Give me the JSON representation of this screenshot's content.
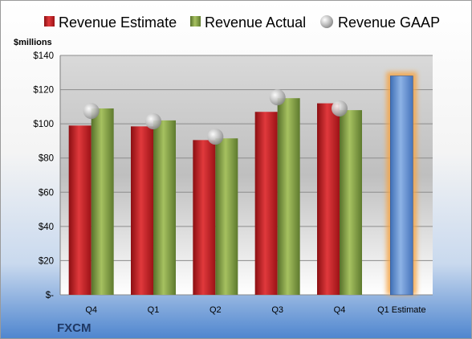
{
  "chart_data": {
    "type": "bar",
    "ticker": "FXCM",
    "y_unit_label": "$millions",
    "categories": [
      "Q4",
      "Q1",
      "Q2",
      "Q3",
      "Q4",
      "Q1 Estimate"
    ],
    "ylim": [
      0,
      140
    ],
    "y_ticks": [
      {
        "value": 0,
        "label": "$-"
      },
      {
        "value": 20,
        "label": "$20"
      },
      {
        "value": 40,
        "label": "$40"
      },
      {
        "value": 60,
        "label": "$60"
      },
      {
        "value": 80,
        "label": "$80"
      },
      {
        "value": 100,
        "label": "$100"
      },
      {
        "value": 120,
        "label": "$120"
      },
      {
        "value": 140,
        "label": "$140"
      }
    ],
    "grid": true,
    "legend_position": "top",
    "series": [
      {
        "name": "Revenue Estimate",
        "kind": "bar",
        "color": "#c0181c",
        "values": [
          99,
          98.5,
          90.5,
          107,
          112,
          null
        ]
      },
      {
        "name": "Revenue Actual",
        "kind": "bar",
        "color": "#77933c",
        "values": [
          109,
          102,
          91.5,
          115,
          108,
          null
        ]
      },
      {
        "name": "Revenue GAAP",
        "kind": "marker",
        "color": "#a6a6a6",
        "values": [
          107.5,
          101.5,
          92.5,
          115.5,
          109,
          null
        ]
      }
    ],
    "estimate_bar": {
      "category": "Q1 Estimate",
      "value": 128,
      "color": "#5b8bd0",
      "highlight": "#f5a546"
    }
  }
}
